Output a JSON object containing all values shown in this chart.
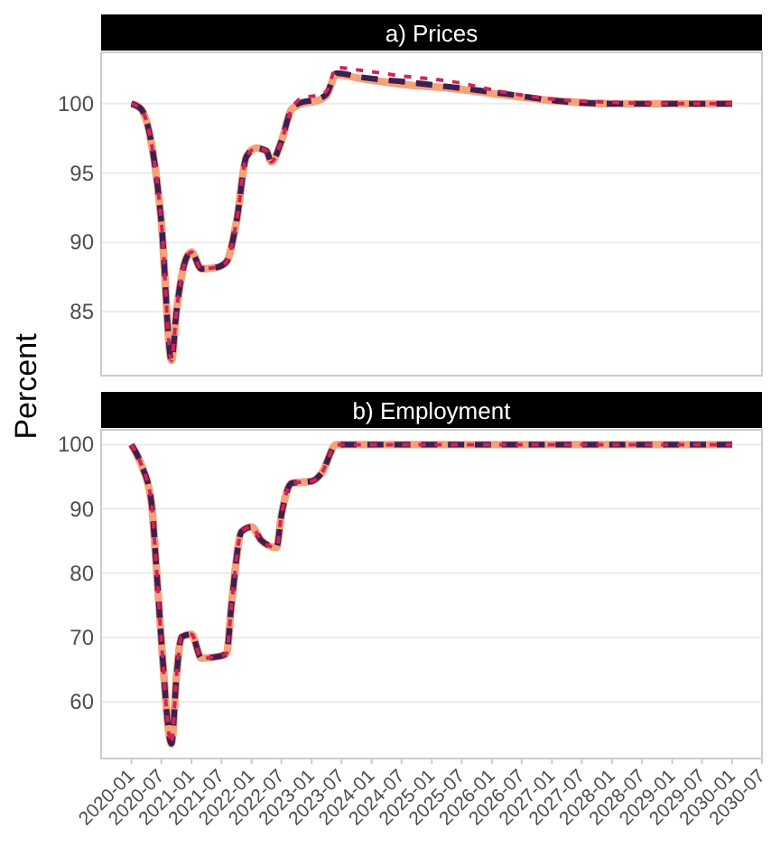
{
  "chart_data": [
    {
      "type": "line",
      "title": "a) Prices",
      "ylabel": "Percent",
      "x": [
        "2020-01",
        "2020-03",
        "2020-05",
        "2020-07",
        "2020-09",
        "2020-10",
        "2020-12",
        "2021-01",
        "2021-03",
        "2021-06",
        "2021-08",
        "2021-10",
        "2021-12",
        "2022-02",
        "2022-04",
        "2022-05",
        "2022-07",
        "2022-09",
        "2022-11",
        "2023-02",
        "2023-04",
        "2023-06",
        "2023-11",
        "2024-07",
        "2025-05",
        "2026-04",
        "2027-02",
        "2028-01",
        "2029-01",
        "2030-01"
      ],
      "series": [
        {
          "color": "#f5a27a",
          "line_style": "solid",
          "values": [
            100,
            99.6,
            97.2,
            91.5,
            81.5,
            85,
            88.9,
            89.3,
            88.1,
            88.2,
            88.6,
            91.5,
            96.2,
            96.8,
            96.6,
            95.8,
            97.3,
            99.6,
            100,
            100.2,
            100.6,
            102.1,
            101.8,
            101.4,
            101.1,
            100.6,
            100.2,
            100,
            100,
            100
          ]
        },
        {
          "color": "#3d1f52",
          "line_style": "dashed",
          "values": [
            100,
            99.6,
            97.2,
            91.5,
            81.5,
            85,
            88.9,
            89.3,
            88.1,
            88.2,
            88.6,
            91.5,
            96.2,
            96.8,
            96.6,
            95.8,
            97.3,
            99.6,
            100.1,
            100.3,
            100.7,
            102.2,
            101.9,
            101.6,
            101.2,
            100.7,
            100.2,
            100,
            100,
            100
          ]
        },
        {
          "color": "#d1245a",
          "line_style": "dotted",
          "values": [
            100,
            99.6,
            97.2,
            91.5,
            81.5,
            85,
            88.9,
            89.3,
            88.1,
            88.2,
            88.6,
            91.5,
            96.2,
            96.8,
            96.6,
            95.8,
            97.3,
            99.6,
            100.4,
            100.6,
            100.9,
            102.6,
            102.4,
            102.0,
            101.6,
            100.8,
            100.3,
            100.1,
            100,
            100
          ]
        }
      ],
      "xlim": [
        "2019-07",
        "2030-07"
      ],
      "ylim": [
        80.4,
        103.7
      ],
      "yticks": [
        85,
        90,
        95,
        100
      ],
      "grid": "y",
      "tick_labels": "y"
    },
    {
      "type": "line",
      "title": "b) Employment",
      "x": [
        "2020-01",
        "2020-03",
        "2020-05",
        "2020-06",
        "2020-07",
        "2020-09",
        "2020-10",
        "2020-11",
        "2021-01",
        "2021-03",
        "2021-06",
        "2021-08",
        "2021-09",
        "2021-11",
        "2022-01",
        "2022-03",
        "2022-06",
        "2022-07",
        "2022-09",
        "2023-01",
        "2023-03",
        "2023-06",
        "2030-01"
      ],
      "series": [
        {
          "color": "#f5a27a",
          "line_style": "solid",
          "values": [
            100,
            96.9,
            91.2,
            80.9,
            69.6,
            53.5,
            63.9,
            70.1,
            70.5,
            66.8,
            67,
            67.5,
            75.2,
            86.5,
            87.2,
            85.1,
            84,
            89,
            94,
            94.3,
            95.5,
            100,
            100
          ]
        },
        {
          "color": "#3d1f52",
          "line_style": "dashed",
          "values": [
            100,
            96.9,
            91.2,
            80.9,
            69.6,
            53.5,
            63.9,
            70.1,
            70.5,
            66.8,
            67,
            67.5,
            75.2,
            86.5,
            87.2,
            85.1,
            84,
            89,
            94,
            94.3,
            95.5,
            100,
            100
          ]
        },
        {
          "color": "#d1245a",
          "line_style": "dotted",
          "values": [
            100,
            96.9,
            91.2,
            80.9,
            69.6,
            53.5,
            63.9,
            70.1,
            70.5,
            66.8,
            67,
            67.5,
            75.2,
            86.5,
            87.2,
            85.1,
            84,
            89,
            94,
            94.3,
            95.5,
            100,
            100
          ]
        }
      ],
      "xlim": [
        "2019-07",
        "2030-07"
      ],
      "xticks": [
        "2020-01",
        "2020-07",
        "2021-01",
        "2021-07",
        "2022-01",
        "2022-07",
        "2023-01",
        "2023-07",
        "2024-01",
        "2024-07",
        "2025-01",
        "2025-07",
        "2026-01",
        "2026-07",
        "2027-01",
        "2027-07",
        "2028-01",
        "2028-07",
        "2029-01",
        "2029-07",
        "2030-01",
        "2030-07"
      ],
      "ylim": [
        51.2,
        102.3
      ],
      "yticks": [
        60,
        70,
        80,
        90,
        100
      ],
      "grid": "y"
    }
  ]
}
